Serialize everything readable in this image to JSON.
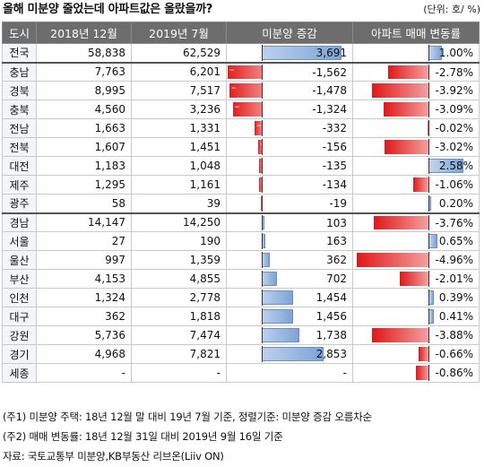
{
  "title": "올해 미분양 줄었는데 아파트값은 올랐을까?",
  "unit": "(단위: 호/ %)",
  "headers": [
    "도시",
    "2018년 12월",
    "2019년 7월",
    "미분양 증감",
    "아파트 매매 변동률"
  ],
  "rows": [
    {
      "city": "전국",
      "dec2018": "58,838",
      "jul2019": "62,529",
      "unsold_change": 3691,
      "unsold_text": "3,691",
      "price_change": 1.0,
      "price_text": "1.00%"
    },
    {
      "city": "충남",
      "dec2018": "7,763",
      "jul2019": "6,201",
      "unsold_change": -1562,
      "unsold_text": "-1,562",
      "price_change": -2.78,
      "price_text": "-2.78%"
    },
    {
      "city": "경북",
      "dec2018": "8,995",
      "jul2019": "7,517",
      "unsold_change": -1478,
      "unsold_text": "-1,478",
      "price_change": -3.92,
      "price_text": "-3.92%"
    },
    {
      "city": "충북",
      "dec2018": "4,560",
      "jul2019": "3,236",
      "unsold_change": -1324,
      "unsold_text": "-1,324",
      "price_change": -3.09,
      "price_text": "-3.09%"
    },
    {
      "city": "전남",
      "dec2018": "1,663",
      "jul2019": "1,331",
      "unsold_change": -332,
      "unsold_text": "-332",
      "price_change": -0.02,
      "price_text": "-0.02%"
    },
    {
      "city": "전북",
      "dec2018": "1,607",
      "jul2019": "1,451",
      "unsold_change": -156,
      "unsold_text": "-156",
      "price_change": -3.02,
      "price_text": "-3.02%"
    },
    {
      "city": "대전",
      "dec2018": "1,183",
      "jul2019": "1,048",
      "unsold_change": -135,
      "unsold_text": "-135",
      "price_change": 2.58,
      "price_text": "2.58%"
    },
    {
      "city": "제주",
      "dec2018": "1,295",
      "jul2019": "1,161",
      "unsold_change": -134,
      "unsold_text": "-134",
      "price_change": -1.06,
      "price_text": "-1.06%"
    },
    {
      "city": "광주",
      "dec2018": "58",
      "jul2019": "39",
      "unsold_change": -19,
      "unsold_text": "-19",
      "price_change": 0.2,
      "price_text": "0.20%"
    },
    {
      "city": "경남",
      "dec2018": "14,147",
      "jul2019": "14,250",
      "unsold_change": 103,
      "unsold_text": "103",
      "price_change": -3.76,
      "price_text": "-3.76%"
    },
    {
      "city": "서울",
      "dec2018": "27",
      "jul2019": "190",
      "unsold_change": 163,
      "unsold_text": "163",
      "price_change": 0.65,
      "price_text": "0.65%"
    },
    {
      "city": "울산",
      "dec2018": "997",
      "jul2019": "1,359",
      "unsold_change": 362,
      "unsold_text": "362",
      "price_change": -4.96,
      "price_text": "-4.96%"
    },
    {
      "city": "부산",
      "dec2018": "4,153",
      "jul2019": "4,855",
      "unsold_change": 702,
      "unsold_text": "702",
      "price_change": -2.01,
      "price_text": "-2.01%"
    },
    {
      "city": "인천",
      "dec2018": "1,324",
      "jul2019": "2,778",
      "unsold_change": 1454,
      "unsold_text": "1,454",
      "price_change": 0.39,
      "price_text": "0.39%"
    },
    {
      "city": "대구",
      "dec2018": "362",
      "jul2019": "1,818",
      "unsold_change": 1456,
      "unsold_text": "1,456",
      "price_change": 0.41,
      "price_text": "0.41%"
    },
    {
      "city": "강원",
      "dec2018": "5,736",
      "jul2019": "7,474",
      "unsold_change": 1738,
      "unsold_text": "1,738",
      "price_change": -3.88,
      "price_text": "-3.88%"
    },
    {
      "city": "경기",
      "dec2018": "4,968",
      "jul2019": "7,821",
      "unsold_change": 2853,
      "unsold_text": "2,853",
      "price_change": -0.66,
      "price_text": "-0.66%"
    },
    {
      "city": "세종",
      "dec2018": "-",
      "jul2019": "-",
      "unsold_change": null,
      "unsold_text": "-",
      "price_change": -0.86,
      "price_text": "-0.86%"
    }
  ],
  "notes": [
    "(주1) 미분양 주택: 18년 12월 말 대비 19년 7월 기준, 정렬기준: 미분양 증감 오름차순",
    "(주2) 매매 변동률: 18년 12월 31일 대비 2019년 9월 16일 기준",
    "자료: 국토교통부 미분양,KB부동산 리브온(Liiv ON)"
  ],
  "colors": {
    "header_bg": "#6d6d6d",
    "increase_bar": "#7ea3d6",
    "decrease_bar": "#e02020"
  }
}
